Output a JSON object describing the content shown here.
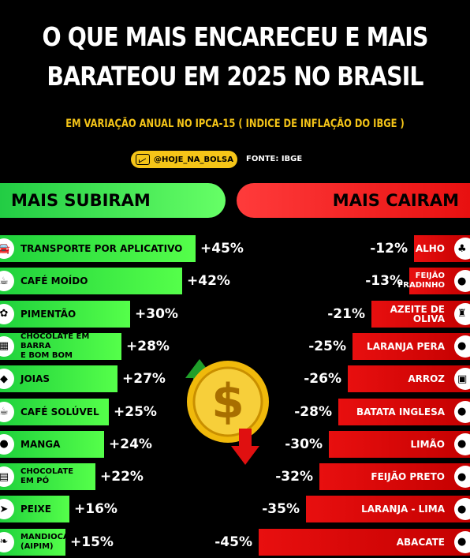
{
  "header": {
    "title_line1": "O QUE MAIS ENCARECEU E MAIS",
    "title_line2": "BARATEOU EM 2025 NO BRASIL",
    "subtitle": "EM VARIAÇÃO ANUAL NO IPCA-15 ( INDICE DE INFLAÇÃO DO IBGE )",
    "brand": "@HOJE_NA_BOLSA",
    "source": "FONTE: IBGE"
  },
  "chart_data": [
    {
      "type": "bar",
      "title": "MAIS SUBIRAM",
      "unit": "%",
      "categories": [
        "TRANSPORTE POR APLICATIVO",
        "CAFÉ MOÍDO",
        "PIMENTÃO",
        "CHOCOLATE EM BARRA\nE BOM BOM",
        "JOIAS",
        "CAFÉ SOLÚVEL",
        "MANGA",
        "CHOCOLATE\nEM PÓ",
        "PEIXE",
        "MANDIOCA\n(AIPIM)"
      ],
      "values": [
        45,
        42,
        30,
        28,
        27,
        25,
        24,
        22,
        16,
        15
      ],
      "labels": [
        "+45%",
        "+42%",
        "+30%",
        "+28%",
        "+27%",
        "+25%",
        "+24%",
        "+22%",
        "+16%",
        "+15%"
      ],
      "color": "#33e64a"
    },
    {
      "type": "bar",
      "title": "MAIS CAIRAM",
      "unit": "%",
      "categories": [
        "ALHO",
        "FEIJÃO\nFRADINHO",
        "AZEITE DE OLIVA",
        "LARANJA PERA",
        "ARROZ",
        "BATATA INGLESA",
        "LIMÃO",
        "FEIJÃO PRETO",
        "LARANJA - LIMA",
        "ABACATE"
      ],
      "values": [
        -12,
        -13,
        -21,
        -25,
        -26,
        -28,
        -30,
        -32,
        -35,
        -45
      ],
      "labels": [
        "-12%",
        "-13%",
        "-21%",
        "-25%",
        "-26%",
        "-28%",
        "-30%",
        "-32%",
        "-35%",
        "-45%"
      ],
      "color": "#e01010"
    }
  ],
  "colors": {
    "accent": "#f5c518",
    "up": "#33e64a",
    "down": "#e01010"
  },
  "icons": {
    "left": [
      "car-icon",
      "coffee-bag-icon",
      "pepper-icon",
      "chocolate-icon",
      "diamond-icon",
      "coffee-cup-icon",
      "mango-icon",
      "chocolate-powder-icon",
      "fish-icon",
      "cassava-icon"
    ],
    "right": [
      "garlic-icon",
      "beans-icon",
      "olive-oil-icon",
      "orange-icon",
      "rice-icon",
      "potato-icon",
      "lemon-icon",
      "black-beans-icon",
      "lime-orange-icon",
      "avocado-icon"
    ]
  },
  "coin": {
    "symbol": "$"
  }
}
